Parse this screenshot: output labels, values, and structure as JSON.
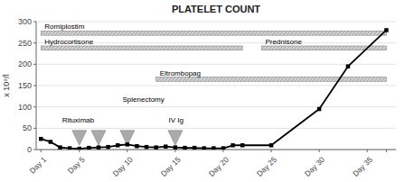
{
  "chart_data": {
    "type": "line",
    "title": "PLATELET COUNT",
    "y_label": "x 10⁹/l",
    "x": [
      1,
      2,
      3,
      4,
      5,
      6,
      7,
      8,
      9,
      10,
      11,
      12,
      13,
      14,
      15,
      16,
      17,
      18,
      19,
      20,
      21,
      22,
      25,
      30,
      33,
      37
    ],
    "values": [
      25,
      18,
      5,
      3,
      2,
      4,
      5,
      6,
      10,
      12,
      8,
      6,
      5,
      7,
      5,
      4,
      4,
      3,
      3,
      3,
      10,
      10,
      10,
      95,
      195,
      280
    ],
    "color": "#000000",
    "marker": "square",
    "xlim": [
      0.5,
      38
    ],
    "ylim": [
      0,
      300
    ],
    "xticks": [
      {
        "value": 1,
        "label": "Day 1"
      },
      {
        "value": 5,
        "label": "Day 5"
      },
      {
        "value": 10,
        "label": "Day 10"
      },
      {
        "value": 15,
        "label": "Day 15"
      },
      {
        "value": 20,
        "label": "Day 20"
      },
      {
        "value": 25,
        "label": "Day 25"
      },
      {
        "value": 30,
        "label": "Day 30"
      },
      {
        "value": 35,
        "label": "Day 35"
      },
      {
        "value": 37,
        "label": null
      }
    ],
    "yticks": [
      0,
      50,
      100,
      150,
      200,
      250,
      300
    ],
    "grid": true,
    "ranges": [
      {
        "label": "Romiplostim",
        "x_start": 1,
        "x_end": 37,
        "y_bottom": 268,
        "y_top": 278,
        "color": "#d0d0d0"
      },
      {
        "label": "Hydrocortisone",
        "x_start": 1,
        "x_end": 22,
        "y_bottom": 233,
        "y_top": 243,
        "color": "#d0d0d0"
      },
      {
        "label": "Prednisone",
        "x_start": 24,
        "x_end": 37,
        "y_bottom": 233,
        "y_top": 243,
        "color": "#d0d0d0"
      },
      {
        "label": "Eltrombopag",
        "x_start": 13,
        "x_end": 37,
        "y_bottom": 160,
        "y_top": 170,
        "color": "#d0d0d0"
      }
    ],
    "annotations": [
      {
        "text": "Splenectomy",
        "x": 9.5,
        "y": 113
      },
      {
        "text": "Rituximab",
        "x": 3.2,
        "y": 63
      },
      {
        "text": "IV Ig",
        "x": 14.3,
        "y": 63
      }
    ],
    "arrows": [
      {
        "x": 5,
        "from": 45,
        "to": 10,
        "color": "#aaaaaa"
      },
      {
        "x": 7,
        "from": 45,
        "to": 10,
        "color": "#aaaaaa"
      },
      {
        "x": 10,
        "from": 45,
        "to": 10,
        "color": "#aaaaaa"
      },
      {
        "x": 15,
        "from": 45,
        "to": 10,
        "color": "#aaaaaa"
      }
    ]
  }
}
